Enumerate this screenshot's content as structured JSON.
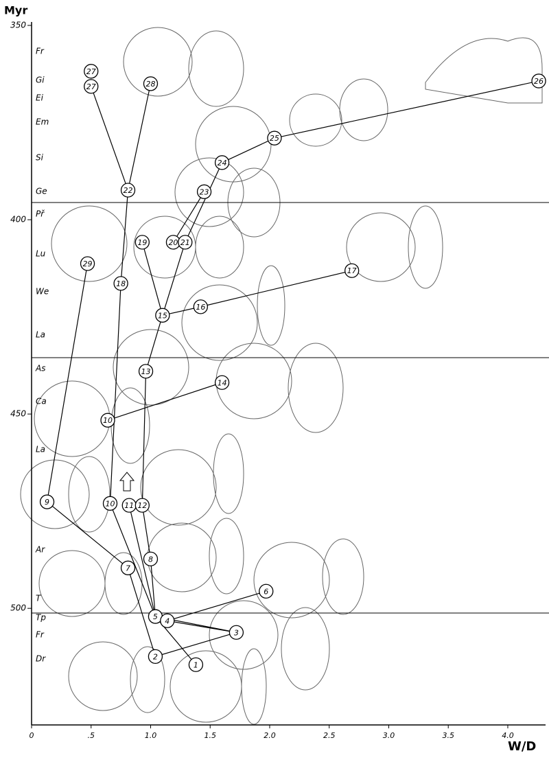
{
  "chart_data": {
    "type": "scatter",
    "y_axis_label": "Myr",
    "x_axis_label": "W/D",
    "xlim": [
      0,
      4.3
    ],
    "xticks": [
      0,
      {
        "value": 0.5,
        "label": ".5"
      },
      {
        "value": 1.0,
        "label": "1.0"
      },
      {
        "value": 1.5,
        "label": "1.5"
      },
      {
        "value": 2.0,
        "label": "2.0"
      },
      {
        "value": 2.5,
        "label": "2.5"
      },
      {
        "value": 3.0,
        "label": "3.0"
      },
      {
        "value": 3.5,
        "label": "3.5"
      },
      {
        "value": 4.0,
        "label": "4.0"
      }
    ],
    "ylim": [
      350,
      530
    ],
    "y_inverted": true,
    "yticks": [
      350,
      400,
      450,
      500
    ],
    "stages": [
      "Fr",
      "Gi",
      "Ei",
      "Em",
      "Si",
      "Ge",
      "Př",
      "Lu",
      "We",
      "La",
      "As",
      "Ca",
      "La",
      "Ar",
      "T",
      "Tp",
      "Fr",
      "Dr"
    ],
    "point_labels": [
      "27",
      "27",
      "28",
      "26",
      "25",
      "24",
      "22",
      "23",
      "19",
      "20",
      "21",
      "29",
      "18",
      "17",
      "16",
      "15",
      "13",
      "14",
      "10",
      "9",
      "10",
      "11",
      "12",
      "7",
      "8",
      "6",
      "5",
      "4",
      "3",
      "2",
      "1"
    ],
    "x": [
      0.5,
      0.5,
      1.0,
      4.26,
      2.04,
      1.6,
      0.81,
      1.45,
      0.93,
      1.19,
      1.29,
      0.47,
      0.75,
      2.69,
      1.42,
      1.1,
      0.96,
      1.6,
      0.64,
      0.13,
      0.66,
      0.82,
      0.93,
      0.81,
      1.0,
      1.97,
      1.04,
      1.14,
      1.72,
      1.04,
      1.38
    ],
    "values": [
      361.8,
      365.7,
      365.0,
      364.3,
      379.0,
      385.3,
      392.4,
      392.8,
      405.8,
      405.8,
      405.8,
      411.3,
      416.4,
      413.1,
      422.4,
      424.6,
      439.0,
      441.9,
      451.6,
      472.6,
      473.0,
      473.5,
      473.5,
      489.6,
      487.3,
      495.6,
      502.1,
      503.2,
      506.2,
      512.4,
      514.5
    ],
    "color": "#000000"
  }
}
